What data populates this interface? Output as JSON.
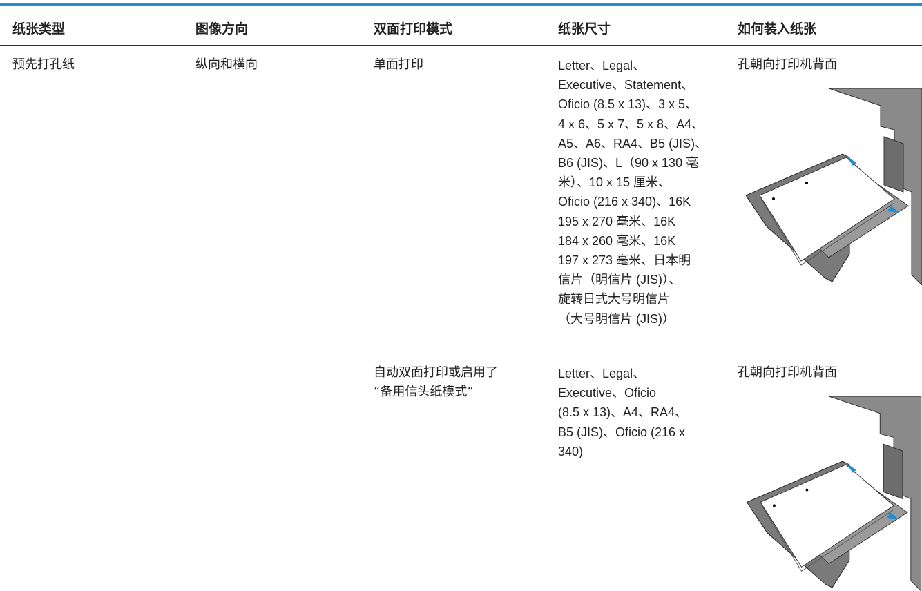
{
  "table": {
    "header": [
      "纸张类型",
      "图像方向",
      "双面打印模式",
      "纸张尺寸",
      "如何装入纸张"
    ],
    "rows": [
      {
        "paper_type": "预先打孔纸",
        "orientation": "纵向和横向",
        "duplex_mode": "单面打印",
        "sizes": [
          "Letter、Legal、",
          "Executive、Statement、",
          "Oficio (8.5 x 13)、3 x 5、",
          "4 x 6、5 x 7、5 x 8、A4、",
          "A5、A6、RA4、B5 (JIS)、",
          "B6 (JIS)、L（90 x 130 毫",
          "米）、10 x 15 厘米、",
          "Oficio (216 x 340)、16K",
          "195 x 270 毫米、16K",
          "184 x 260 毫米、16K",
          "197 x 273 毫米、日本明",
          "信片（明信片 (JIS)）、",
          "旋转日式大号明信片",
          "（大号明信片 (JIS)）"
        ],
        "loading": "孔朝向打印机背面"
      },
      {
        "duplex_mode": [
          "自动双面打印或启用了",
          "“备用信头纸模式”"
        ],
        "sizes": [
          "Letter、Legal、",
          "Executive、Oficio",
          "(8.5 x 13)、A4、RA4、",
          "B5 (JIS)、Oficio (216 x",
          "340)"
        ],
        "loading": "孔朝向打印机背面"
      }
    ]
  }
}
